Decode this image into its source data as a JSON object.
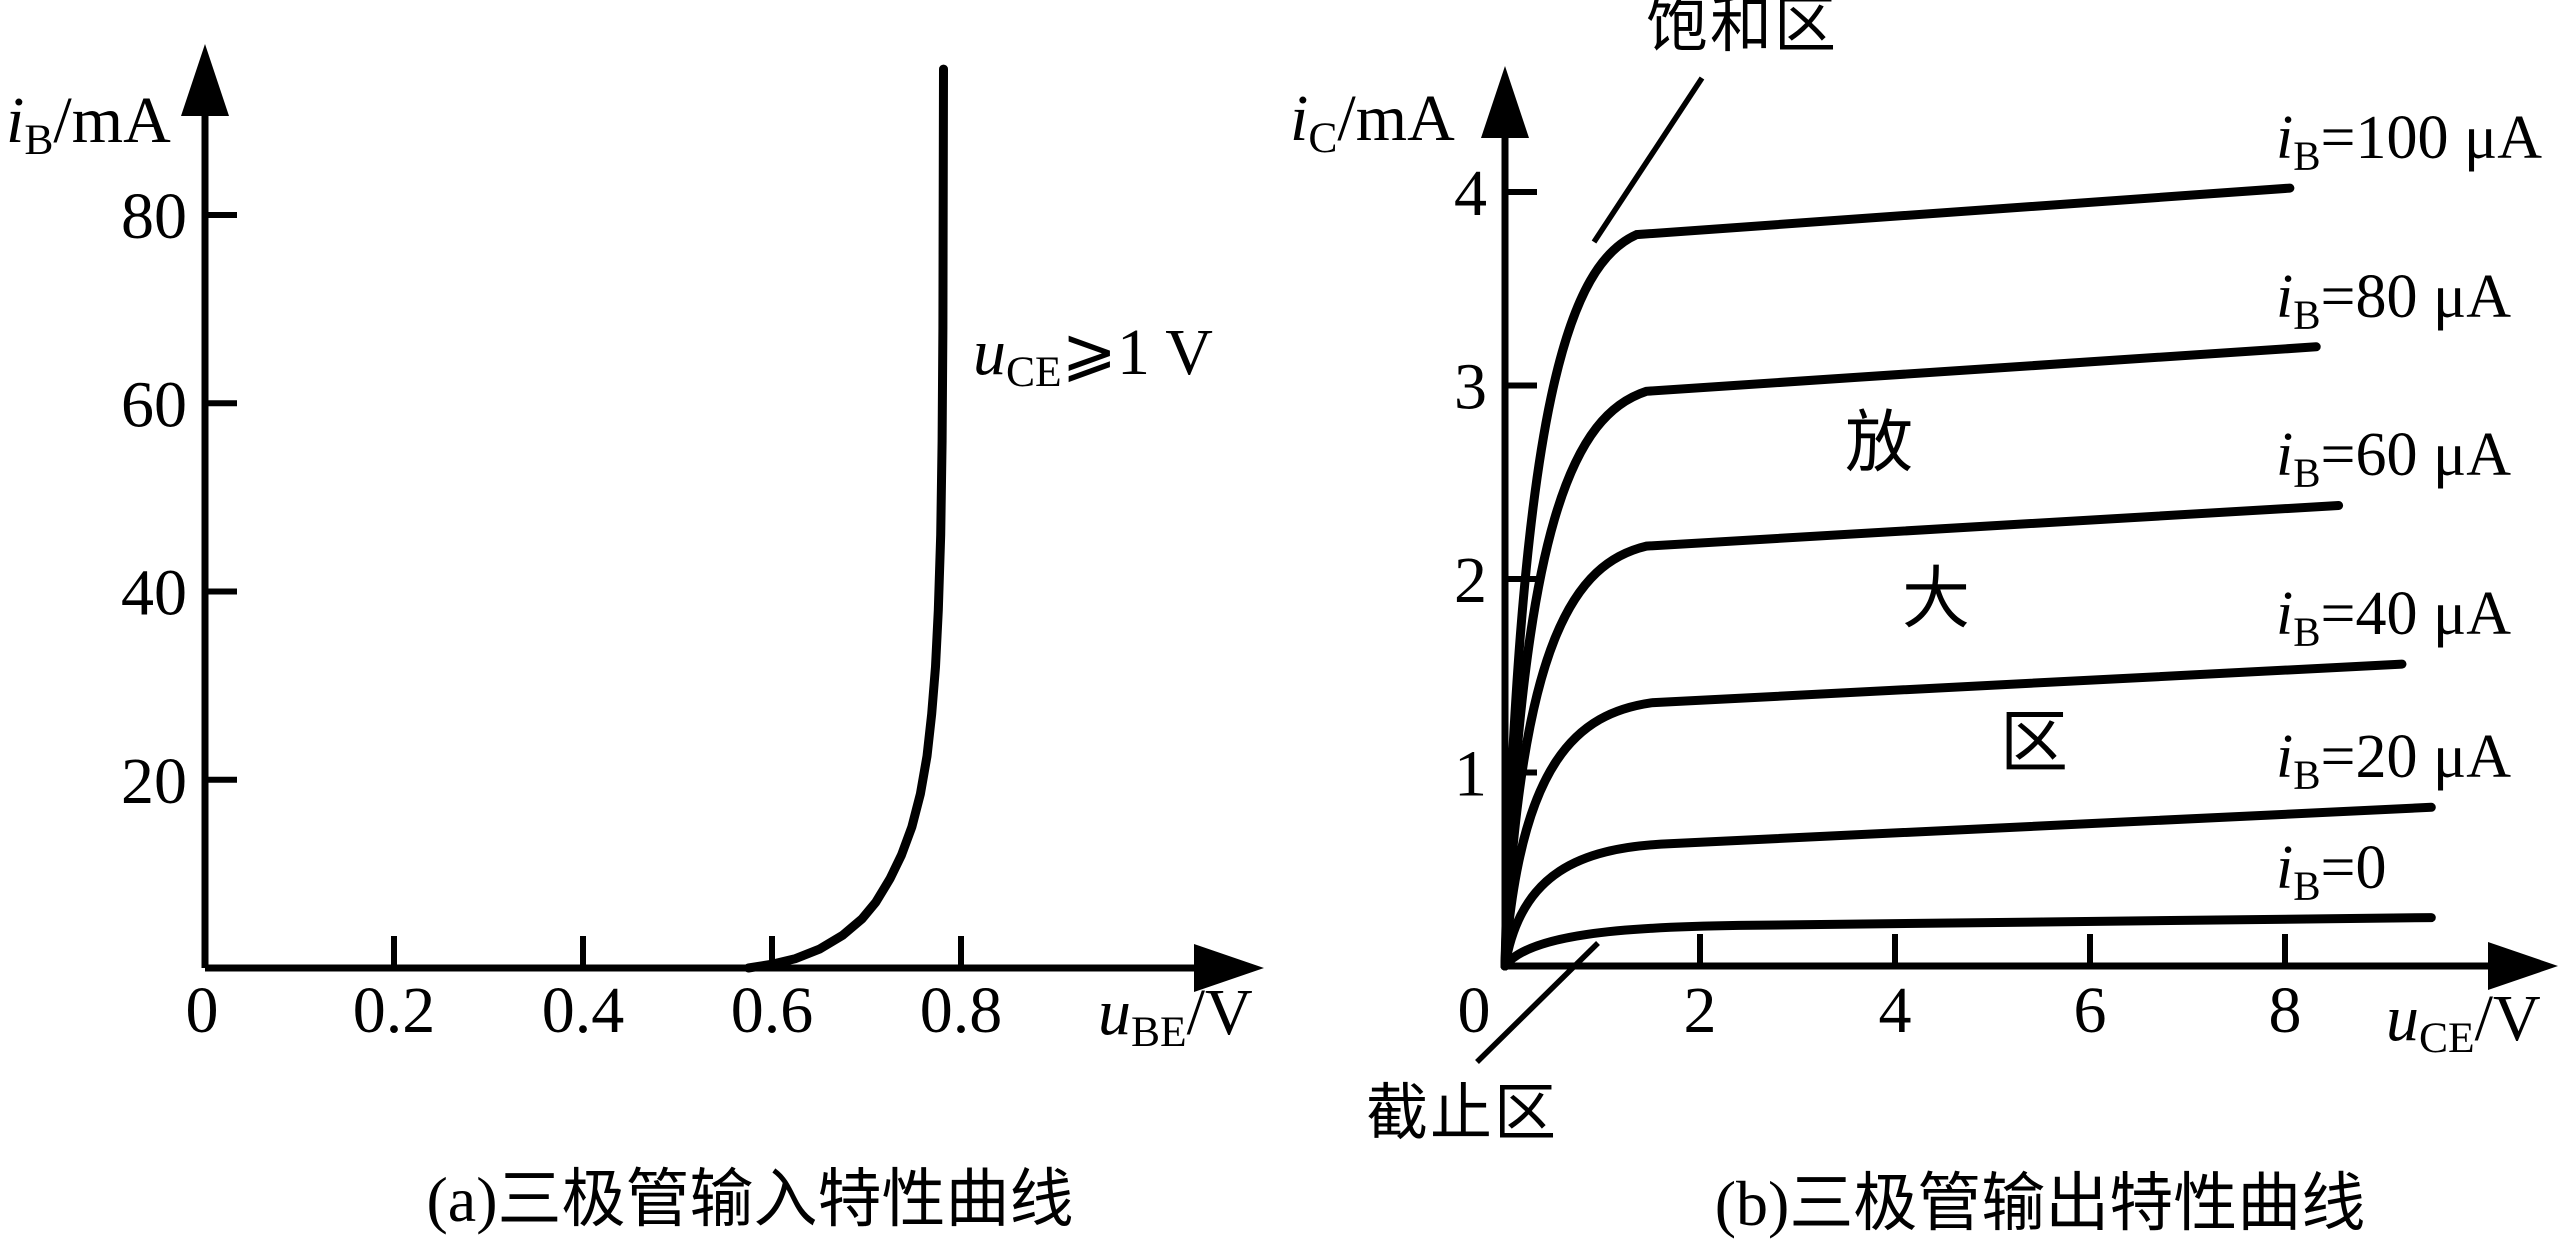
{
  "colors": {
    "ink": "#000000",
    "background": "#ffffff"
  },
  "figure": {
    "caption_a": "(a)三极管输入特性曲线",
    "caption_b": "(b)三极管输出特性曲线"
  },
  "annotations": {
    "uce_condition": {
      "v": "u",
      "s": "CE",
      "r": "⩾1 V"
    },
    "saturation_region": "饱和区",
    "cutoff_region": "截止区",
    "amplify_chars": [
      "放",
      "大",
      "区"
    ]
  },
  "chart_data": [
    {
      "id": "input-characteristic",
      "type": "line",
      "title": "(a)三极管输入特性曲线",
      "xlabel": {
        "v": "u",
        "s": "BE",
        "r": "/V"
      },
      "ylabel": {
        "v": "i",
        "s": "B",
        "r": "/mA"
      },
      "xlim": [
        0,
        0.9
      ],
      "ylim": [
        0,
        90
      ],
      "grid": false,
      "condition_note": "u_CE ⩾ 1 V",
      "xticks": {
        "values": [
          0,
          0.2,
          0.4,
          0.6,
          0.8
        ],
        "labels": [
          "0",
          "0.2",
          "0.4",
          "0.6",
          "0.8"
        ]
      },
      "yticks": {
        "values": [
          20,
          40,
          60,
          80
        ],
        "labels": [
          "20",
          "40",
          "60",
          "80"
        ]
      },
      "points_uBE_V_iB_mA": [
        [
          0.575,
          0
        ],
        [
          0.6,
          0.4
        ],
        [
          0.625,
          1
        ],
        [
          0.65,
          2
        ],
        [
          0.675,
          3.5
        ],
        [
          0.695,
          5.2
        ],
        [
          0.71,
          7
        ],
        [
          0.725,
          9.5
        ],
        [
          0.737,
          12
        ],
        [
          0.748,
          15
        ],
        [
          0.757,
          18.5
        ],
        [
          0.764,
          22.5
        ],
        [
          0.769,
          27
        ],
        [
          0.773,
          32
        ],
        [
          0.776,
          38
        ],
        [
          0.7785,
          46
        ],
        [
          0.78,
          56
        ],
        [
          0.7808,
          68
        ],
        [
          0.7812,
          82
        ],
        [
          0.7815,
          95.5
        ]
      ]
    },
    {
      "id": "output-characteristic",
      "type": "line",
      "title": "(b)三极管输出特性曲线",
      "xlabel": {
        "v": "u",
        "s": "CE",
        "r": "/V"
      },
      "ylabel": {
        "v": "i",
        "s": "C",
        "r": "/mA"
      },
      "xlim": [
        0,
        10
      ],
      "ylim": [
        0,
        4.5
      ],
      "grid": false,
      "regions": {
        "saturation": "饱和区",
        "amplification": "放大区",
        "cutoff": "截止区"
      },
      "xticks": {
        "values": [
          0,
          2,
          4,
          6,
          8
        ],
        "labels": [
          "0",
          "2",
          "4",
          "6",
          "8"
        ]
      },
      "yticks": {
        "values": [
          1,
          2,
          3,
          4
        ],
        "labels": [
          "1",
          "2",
          "3",
          "4"
        ]
      },
      "series": [
        {
          "iB_uA": 100,
          "label": {
            "v": "i",
            "s": "B",
            "r": "=100 μA"
          },
          "sat_mA": 3.78,
          "end_mA": 4.02,
          "u_knee_V": 1.35,
          "u_end_V": 8.05
        },
        {
          "iB_uA": 80,
          "label": {
            "v": "i",
            "s": "B",
            "r": "=80 μA"
          },
          "sat_mA": 2.97,
          "end_mA": 3.2,
          "u_knee_V": 1.45,
          "u_end_V": 8.32
        },
        {
          "iB_uA": 60,
          "label": {
            "v": "i",
            "s": "B",
            "r": "=60 μA"
          },
          "sat_mA": 2.17,
          "end_mA": 2.38,
          "u_knee_V": 1.45,
          "u_end_V": 8.55
        },
        {
          "iB_uA": 40,
          "label": {
            "v": "i",
            "s": "B",
            "r": "=40 μA"
          },
          "sat_mA": 1.36,
          "end_mA": 1.56,
          "u_knee_V": 1.5,
          "u_end_V": 9.2
        },
        {
          "iB_uA": 20,
          "label": {
            "v": "i",
            "s": "B",
            "r": "=20 μA"
          },
          "sat_mA": 0.63,
          "end_mA": 0.82,
          "u_knee_V": 1.6,
          "u_end_V": 9.5
        },
        {
          "iB_uA": 0,
          "label": {
            "v": "i",
            "s": "B",
            "r": "=0"
          },
          "sat_mA": 0.21,
          "end_mA": 0.25,
          "u_knee_V": 2.4,
          "u_end_V": 9.5
        }
      ]
    }
  ]
}
